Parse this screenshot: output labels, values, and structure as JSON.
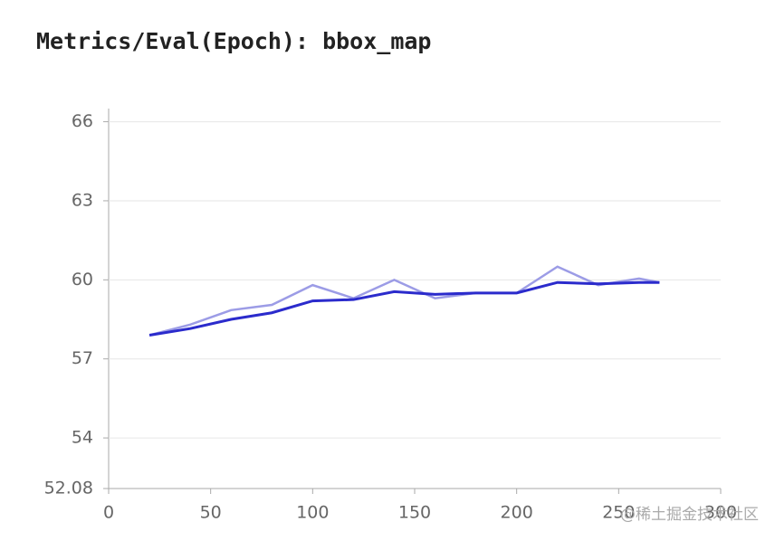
{
  "chart_data": {
    "type": "line",
    "title": "Metrics/Eval(Epoch): bbox_map",
    "x": [
      20,
      40,
      60,
      80,
      100,
      120,
      140,
      160,
      180,
      200,
      220,
      240,
      260,
      270
    ],
    "series": [
      {
        "color": "#9c9ce6",
        "values": [
          57.9,
          58.3,
          58.85,
          59.05,
          59.8,
          59.3,
          60.0,
          59.3,
          59.5,
          59.5,
          60.5,
          59.8,
          60.05,
          59.9
        ]
      },
      {
        "color": "#2b2bcc",
        "values": [
          57.9,
          58.15,
          58.5,
          58.75,
          59.2,
          59.25,
          59.55,
          59.45,
          59.5,
          59.5,
          59.9,
          59.85,
          59.9,
          59.9
        ]
      }
    ],
    "xlim": [
      0,
      300
    ],
    "xticks": [
      0,
      50,
      100,
      150,
      200,
      250,
      300
    ],
    "ylim": [
      52.08,
      66.5
    ],
    "yticks": [
      52.08,
      54,
      57,
      60,
      63,
      66
    ],
    "grid": true,
    "watermark": "@稀土掘金技术社区"
  }
}
